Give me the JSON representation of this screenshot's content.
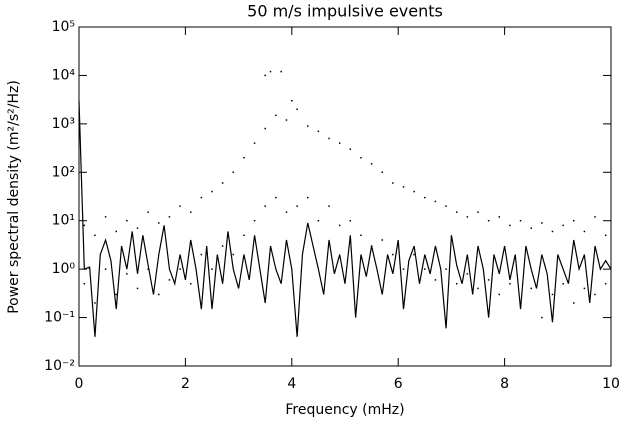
{
  "chart_data": {
    "type": "line",
    "title": "50 m/s impulsive events",
    "xlabel": "Frequency (mHz)",
    "ylabel": "Power spectral density (m²/s²/Hz)",
    "xlim": [
      0,
      10
    ],
    "xticks": [
      0,
      2,
      4,
      6,
      8,
      10
    ],
    "ylim": [
      0.01,
      100000
    ],
    "ylog": true,
    "yticks": [
      {
        "value": 0.01,
        "label": "10⁻²"
      },
      {
        "value": 0.1,
        "label": "10⁻¹"
      },
      {
        "value": 1,
        "label": "10⁰"
      },
      {
        "value": 10,
        "label": "10¹"
      },
      {
        "value": 100,
        "label": "10²"
      },
      {
        "value": 1000,
        "label": "10³"
      },
      {
        "value": 10000,
        "label": "10⁴"
      },
      {
        "value": 100000,
        "label": "10⁵"
      }
    ],
    "series": [
      {
        "type": "scatter",
        "color": "#000000",
        "x": [
          0.1,
          0.1,
          0.3,
          0.3,
          0.5,
          0.5,
          0.7,
          0.7,
          0.9,
          0.9,
          1.1,
          1.1,
          1.3,
          1.3,
          1.5,
          1.5,
          1.7,
          1.7,
          1.9,
          1.9,
          2.1,
          2.1,
          2.3,
          2.3,
          2.5,
          2.5,
          2.7,
          2.7,
          2.9,
          2.9,
          3.1,
          3.1,
          3.3,
          3.3,
          3.5,
          3.5,
          3.7,
          3.7,
          3.9,
          3.9,
          4.1,
          4.1,
          4.3,
          4.3,
          4.5,
          4.5,
          4.7,
          4.7,
          4.9,
          4.9,
          5.1,
          5.1,
          5.3,
          5.3,
          5.5,
          5.5,
          5.7,
          5.7,
          5.9,
          5.9,
          6.1,
          6.1,
          6.3,
          6.3,
          6.5,
          6.5,
          6.7,
          6.7,
          6.9,
          6.9,
          7.1,
          7.1,
          7.3,
          7.3,
          7.5,
          7.5,
          7.7,
          7.7,
          7.9,
          7.9,
          8.1,
          8.1,
          8.3,
          8.3,
          8.5,
          8.5,
          8.7,
          8.7,
          8.9,
          8.9,
          9.1,
          9.1,
          9.3,
          9.3,
          9.5,
          9.5,
          9.7,
          9.7,
          9.9,
          9.9,
          3.5,
          3.6,
          3.8,
          4.0
        ],
        "values": [
          8,
          0.5,
          5,
          0.2,
          12,
          1,
          6,
          0.3,
          10,
          0.8,
          7,
          0.4,
          15,
          1,
          9,
          0.3,
          12,
          0.6,
          20,
          1,
          15,
          0.5,
          30,
          2,
          40,
          1,
          60,
          3,
          100,
          2,
          200,
          5,
          400,
          10,
          800,
          20,
          1500,
          30,
          1200,
          15,
          2000,
          20,
          900,
          30,
          700,
          10,
          500,
          20,
          400,
          8,
          300,
          10,
          200,
          5,
          150,
          3,
          100,
          4,
          60,
          2,
          50,
          1,
          40,
          2,
          30,
          1,
          25,
          0.6,
          20,
          1,
          15,
          0.5,
          12,
          0.8,
          15,
          0.4,
          10,
          0.6,
          12,
          0.3,
          8,
          0.5,
          10,
          0.2,
          7,
          0.4,
          9,
          0.1,
          6,
          0.3,
          8,
          0.5,
          10,
          0.2,
          6,
          0.4,
          12,
          0.3,
          5,
          0.5,
          10000,
          12000,
          12000,
          3000
        ]
      },
      {
        "type": "line",
        "color": "#000000",
        "x": [
          0,
          0.1,
          0.2,
          0.3,
          0.4,
          0.5,
          0.6,
          0.7,
          0.8,
          0.9,
          1,
          1.1,
          1.2,
          1.3,
          1.4,
          1.5,
          1.6,
          1.7,
          1.8,
          1.9,
          2,
          2.1,
          2.2,
          2.3,
          2.4,
          2.5,
          2.6,
          2.7,
          2.8,
          2.9,
          3,
          3.1,
          3.2,
          3.3,
          3.4,
          3.5,
          3.6,
          3.7,
          3.8,
          3.9,
          4,
          4.1,
          4.2,
          4.3,
          4.4,
          4.5,
          4.6,
          4.7,
          4.8,
          4.9,
          5,
          5.1,
          5.2,
          5.3,
          5.4,
          5.5,
          5.6,
          5.7,
          5.8,
          5.9,
          6,
          6.1,
          6.2,
          6.3,
          6.4,
          6.5,
          6.6,
          6.7,
          6.8,
          6.9,
          7,
          7.1,
          7.2,
          7.3,
          7.4,
          7.5,
          7.6,
          7.7,
          7.8,
          7.9,
          8,
          8.1,
          8.2,
          8.3,
          8.4,
          8.5,
          8.6,
          8.7,
          8.8,
          8.9,
          9,
          9.1,
          9.2,
          9.3,
          9.4,
          9.5,
          9.6,
          9.7,
          9.8,
          9.9,
          10
        ],
        "values": [
          3000,
          1,
          1.1,
          0.04,
          2,
          4,
          1.5,
          0.15,
          3,
          1,
          6,
          0.8,
          5,
          1.2,
          0.3,
          2,
          8,
          1,
          0.5,
          2,
          0.6,
          4,
          1,
          0.15,
          3,
          0.15,
          2,
          0.5,
          6,
          1,
          0.4,
          2,
          0.6,
          5,
          1,
          0.2,
          3,
          1,
          0.5,
          4,
          1,
          0.04,
          2,
          9,
          3,
          1,
          0.3,
          4,
          0.8,
          2,
          0.5,
          5,
          0.1,
          2,
          0.7,
          3,
          1,
          0.3,
          2,
          0.8,
          4,
          0.15,
          1.5,
          3,
          0.5,
          2,
          0.8,
          3,
          1,
          0.06,
          5,
          1.2,
          0.5,
          2,
          0.3,
          3,
          1,
          0.1,
          2,
          0.8,
          3,
          0.6,
          2,
          0.15,
          3,
          1,
          0.4,
          2,
          0.8,
          0.08,
          2,
          1,
          0.5,
          4,
          1,
          2,
          0.2,
          3,
          1,
          1.5,
          1
        ]
      }
    ]
  }
}
